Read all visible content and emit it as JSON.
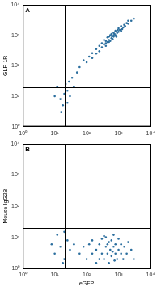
{
  "chart_data": [
    {
      "type": "scatter",
      "panel_label": "A",
      "y_label": "GLP-1R",
      "color": "#2b6e9e",
      "grid": false,
      "log": true,
      "xlim": [
        1,
        10000
      ],
      "ylim": [
        1,
        10000
      ],
      "xticks": [
        {
          "value": 1,
          "label": "10⁰"
        },
        {
          "value": 10,
          "label": "10¹"
        },
        {
          "value": 100,
          "label": "10²"
        },
        {
          "value": 1000,
          "label": "10³"
        },
        {
          "value": 10000,
          "label": "10⁴"
        }
      ],
      "yticks": [
        {
          "value": 1,
          "label": "10⁰"
        },
        {
          "value": 10,
          "label": "10¹"
        },
        {
          "value": 100,
          "label": "10²"
        },
        {
          "value": 1000,
          "label": "10³"
        },
        {
          "value": 10000,
          "label": "10⁴"
        }
      ],
      "quadrant_x": 20,
      "quadrant_y": 20,
      "x": [
        80,
        100,
        120,
        150,
        150,
        200,
        200,
        250,
        250,
        300,
        300,
        350,
        400,
        400,
        450,
        500,
        500,
        550,
        600,
        600,
        700,
        700,
        800,
        800,
        900,
        1000,
        1000,
        1100,
        1200,
        1200,
        1400,
        1500,
        1600,
        1800,
        2000,
        2000,
        2500,
        3000,
        350,
        450,
        550,
        650,
        750,
        850,
        950,
        1300,
        400,
        500,
        600,
        700,
        15,
        20,
        25,
        12,
        18,
        30,
        22,
        10,
        28,
        35,
        40,
        50,
        60,
        16,
        25
      ],
      "values": [
        150,
        130,
        200,
        180,
        260,
        250,
        350,
        300,
        450,
        400,
        550,
        500,
        450,
        650,
        600,
        700,
        900,
        650,
        800,
        1100,
        900,
        1200,
        1000,
        1400,
        1200,
        1300,
        1700,
        1500,
        1400,
        2000,
        1800,
        2200,
        2000,
        2500,
        2400,
        3000,
        3000,
        3500,
        700,
        850,
        1000,
        750,
        1100,
        900,
        1500,
        1600,
        550,
        600,
        950,
        1000,
        8,
        12,
        15,
        20,
        5,
        10,
        25,
        10,
        30,
        40,
        20,
        60,
        90,
        3,
        6
      ]
    },
    {
      "type": "scatter",
      "panel_label": "B",
      "y_label": "Mouse IgG2B",
      "x_label": "eGFP",
      "color": "#2b6e9e",
      "grid": false,
      "log": true,
      "xlim": [
        1,
        10000
      ],
      "ylim": [
        1,
        10000
      ],
      "xticks": [
        {
          "value": 1,
          "label": "10⁰"
        },
        {
          "value": 10,
          "label": "10¹"
        },
        {
          "value": 100,
          "label": "10²"
        },
        {
          "value": 1000,
          "label": "10³"
        },
        {
          "value": 10000,
          "label": "10⁴"
        }
      ],
      "yticks": [
        {
          "value": 1,
          "label": "10⁰"
        },
        {
          "value": 10,
          "label": "10¹"
        },
        {
          "value": 100,
          "label": "10²"
        },
        {
          "value": 1000,
          "label": "10³"
        },
        {
          "value": 10000,
          "label": "10⁴"
        }
      ],
      "quadrant_x": 20,
      "quadrant_y": 20,
      "x": [
        60,
        80,
        100,
        120,
        150,
        150,
        200,
        200,
        250,
        300,
        300,
        350,
        400,
        400,
        450,
        500,
        500,
        550,
        600,
        600,
        700,
        700,
        800,
        800,
        900,
        1000,
        1000,
        1200,
        1200,
        1400,
        1500,
        1800,
        2000,
        2500,
        3000,
        250,
        350,
        450,
        650,
        750,
        10,
        15,
        20,
        25,
        12,
        18,
        30,
        40,
        20,
        8
      ],
      "values": [
        3,
        5,
        2,
        6,
        3,
        8,
        4,
        1.5,
        6,
        3,
        9,
        2,
        5,
        10,
        3,
        7,
        1.5,
        4,
        2.5,
        8,
        5,
        12,
        3,
        6,
        2,
        4,
        9,
        3,
        6,
        2,
        5,
        3,
        7,
        4,
        2,
        2,
        11,
        6,
        3.5,
        1.8,
        3,
        5,
        2,
        8,
        12,
        1.5,
        4,
        6,
        15,
        6
      ]
    }
  ]
}
